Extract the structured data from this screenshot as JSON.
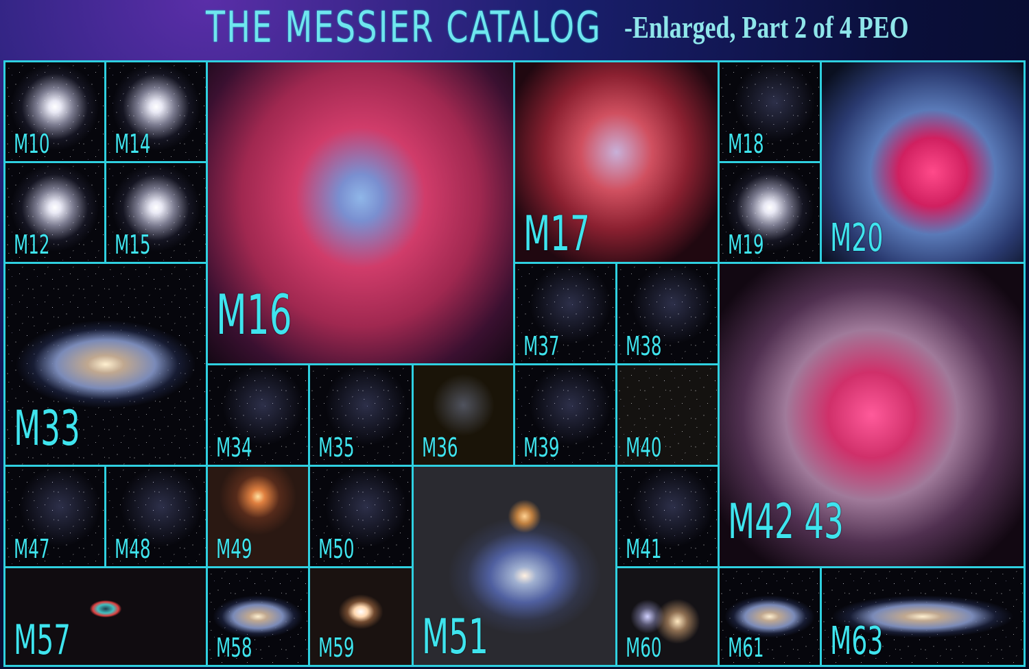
{
  "header": {
    "title": "THE MESSIER CATALOG",
    "subtitle": "-Enlarged,  Part 2 of 4   PEO"
  },
  "accent_color": "#2fd0e0",
  "cells": [
    {
      "label": "M10",
      "type": "globular"
    },
    {
      "label": "M14",
      "type": "globular"
    },
    {
      "label": "M12",
      "type": "globular"
    },
    {
      "label": "M15",
      "type": "globular"
    },
    {
      "label": "M16",
      "type": "nebula"
    },
    {
      "label": "M17",
      "type": "nebula"
    },
    {
      "label": "M18",
      "type": "open-cluster"
    },
    {
      "label": "M19",
      "type": "globular"
    },
    {
      "label": "M20",
      "type": "nebula"
    },
    {
      "label": "M33",
      "type": "galaxy"
    },
    {
      "label": "M37",
      "type": "open-cluster"
    },
    {
      "label": "M38",
      "type": "open-cluster"
    },
    {
      "label": "M42 43",
      "type": "nebula"
    },
    {
      "label": "M34",
      "type": "open-cluster"
    },
    {
      "label": "M35",
      "type": "open-cluster"
    },
    {
      "label": "M36",
      "type": "open-cluster"
    },
    {
      "label": "M39",
      "type": "open-cluster"
    },
    {
      "label": "M40",
      "type": "double-star"
    },
    {
      "label": "M47",
      "type": "open-cluster"
    },
    {
      "label": "M48",
      "type": "open-cluster"
    },
    {
      "label": "M49",
      "type": "galaxy"
    },
    {
      "label": "M50",
      "type": "open-cluster"
    },
    {
      "label": "M51",
      "type": "galaxy"
    },
    {
      "label": "M41",
      "type": "open-cluster"
    },
    {
      "label": "M57",
      "type": "planetary-nebula"
    },
    {
      "label": "M58",
      "type": "galaxy"
    },
    {
      "label": "M59",
      "type": "galaxy"
    },
    {
      "label": "M60",
      "type": "galaxy"
    },
    {
      "label": "M61",
      "type": "galaxy"
    },
    {
      "label": "M63",
      "type": "galaxy"
    }
  ]
}
